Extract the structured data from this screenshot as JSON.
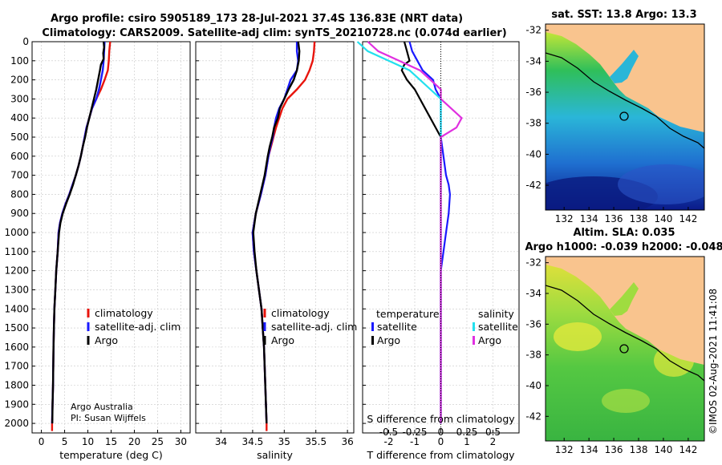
{
  "header": {
    "title_line1": "Argo profile: csiro 5905189_173 28-Jul-2021 37.4S 136.83E (NRT data)",
    "title_line2": "Climatology: CARS2009. Satellite-adj clim: synTS_20210728.nc (0.074d earlier)"
  },
  "credit": {
    "line1": "Argo Australia",
    "line2": "PI: Susan Wijffels"
  },
  "imos_stamp": "©IMOS 02-Aug-2021 11:41:08",
  "colors": {
    "climatology": "#e8140c",
    "satellite": "#1a1aff",
    "argo": "#000000",
    "sal_satellite": "#22e0ee",
    "sal_argo": "#e030e0",
    "land": "#f9c48e"
  },
  "chart_data": [
    {
      "type": "line",
      "title": "",
      "xlabel": "temperature (deg C)",
      "ylabel": "",
      "xlim": [
        -2,
        32
      ],
      "ylim": [
        2050,
        0
      ],
      "xticks": [
        0,
        5,
        10,
        15,
        20,
        25,
        30
      ],
      "yticks": [
        0,
        100,
        200,
        300,
        400,
        500,
        600,
        700,
        800,
        900,
        1000,
        1100,
        1200,
        1300,
        1400,
        1500,
        1600,
        1700,
        1800,
        1900,
        2000
      ],
      "legend": [
        "climatology",
        "satellite-adj. clim",
        "Argo"
      ],
      "series": [
        {
          "name": "climatology",
          "points": [
            [
              14.8,
              0
            ],
            [
              14.6,
              50
            ],
            [
              14.5,
              100
            ],
            [
              14.3,
              150
            ],
            [
              13.6,
              200
            ],
            [
              12.8,
              250
            ],
            [
              11.8,
              300
            ],
            [
              10.9,
              350
            ],
            [
              10.3,
              400
            ],
            [
              9.7,
              450
            ],
            [
              9.3,
              500
            ],
            [
              8.9,
              550
            ],
            [
              8.5,
              600
            ],
            [
              8.0,
              650
            ],
            [
              7.4,
              700
            ],
            [
              6.7,
              750
            ],
            [
              6.0,
              800
            ],
            [
              5.2,
              850
            ],
            [
              4.5,
              900
            ],
            [
              4.0,
              950
            ],
            [
              3.7,
              1000
            ],
            [
              3.5,
              1100
            ],
            [
              3.2,
              1200
            ],
            [
              3.0,
              1300
            ],
            [
              2.8,
              1400
            ],
            [
              2.7,
              1500
            ],
            [
              2.6,
              1600
            ],
            [
              2.55,
              1700
            ],
            [
              2.5,
              1800
            ],
            [
              2.4,
              1900
            ],
            [
              2.3,
              2000
            ],
            [
              2.3,
              2040
            ]
          ]
        },
        {
          "name": "satellite-adj. clim",
          "points": [
            [
              13.6,
              0
            ],
            [
              13.5,
              50
            ],
            [
              13.4,
              100
            ],
            [
              13.2,
              150
            ],
            [
              12.8,
              200
            ],
            [
              12.4,
              250
            ],
            [
              11.8,
              300
            ],
            [
              10.9,
              350
            ],
            [
              10.3,
              400
            ],
            [
              9.7,
              450
            ],
            [
              9.3,
              500
            ],
            [
              8.9,
              550
            ],
            [
              8.5,
              600
            ],
            [
              8.0,
              650
            ],
            [
              7.4,
              700
            ],
            [
              6.7,
              750
            ],
            [
              6.0,
              800
            ],
            [
              5.2,
              850
            ],
            [
              4.5,
              900
            ],
            [
              4.0,
              950
            ],
            [
              3.7,
              1000
            ],
            [
              3.5,
              1100
            ],
            [
              3.2,
              1200
            ],
            [
              3.0,
              1300
            ],
            [
              2.8,
              1400
            ],
            [
              2.7,
              1500
            ],
            [
              2.6,
              1600
            ],
            [
              2.55,
              1700
            ],
            [
              2.5,
              1800
            ],
            [
              2.4,
              1900
            ],
            [
              2.3,
              2000
            ]
          ]
        },
        {
          "name": "Argo",
          "points": [
            [
              13.4,
              0
            ],
            [
              13.5,
              30
            ],
            [
              13.3,
              60
            ],
            [
              13.4,
              90
            ],
            [
              12.8,
              120
            ],
            [
              12.6,
              150
            ],
            [
              12.2,
              200
            ],
            [
              11.8,
              250
            ],
            [
              11.3,
              300
            ],
            [
              10.8,
              350
            ],
            [
              10.3,
              400
            ],
            [
              9.8,
              450
            ],
            [
              9.4,
              500
            ],
            [
              8.9,
              550
            ],
            [
              8.5,
              600
            ],
            [
              8.0,
              650
            ],
            [
              7.4,
              700
            ],
            [
              6.8,
              750
            ],
            [
              6.1,
              800
            ],
            [
              5.3,
              850
            ],
            [
              4.6,
              900
            ],
            [
              4.1,
              950
            ],
            [
              3.8,
              1000
            ],
            [
              3.5,
              1100
            ],
            [
              3.2,
              1200
            ],
            [
              3.0,
              1300
            ],
            [
              2.8,
              1400
            ],
            [
              2.7,
              1500
            ],
            [
              2.6,
              1600
            ],
            [
              2.55,
              1700
            ],
            [
              2.5,
              1800
            ],
            [
              2.4,
              1900
            ],
            [
              2.35,
              2000
            ]
          ]
        }
      ]
    },
    {
      "type": "line",
      "xlabel": "salinity",
      "xlim": [
        33.6,
        36.1
      ],
      "ylim": [
        2050,
        0
      ],
      "xticks": [
        34,
        34.5,
        35,
        35.5,
        36
      ],
      "legend": [
        "climatology",
        "satellite-adj. clim",
        "Argo"
      ],
      "series": [
        {
          "name": "climatology",
          "points": [
            [
              35.48,
              0
            ],
            [
              35.47,
              50
            ],
            [
              35.45,
              100
            ],
            [
              35.4,
              150
            ],
            [
              35.33,
              200
            ],
            [
              35.2,
              250
            ],
            [
              35.05,
              300
            ],
            [
              34.97,
              350
            ],
            [
              34.92,
              400
            ],
            [
              34.87,
              450
            ],
            [
              34.83,
              500
            ],
            [
              34.79,
              550
            ],
            [
              34.75,
              600
            ],
            [
              34.7,
              700
            ],
            [
              34.63,
              800
            ],
            [
              34.55,
              900
            ],
            [
              34.5,
              1000
            ],
            [
              34.52,
              1100
            ],
            [
              34.56,
              1200
            ],
            [
              34.6,
              1300
            ],
            [
              34.64,
              1400
            ],
            [
              34.66,
              1500
            ],
            [
              34.68,
              1600
            ],
            [
              34.69,
              1700
            ],
            [
              34.7,
              1800
            ],
            [
              34.71,
              1900
            ],
            [
              34.72,
              2000
            ],
            [
              34.72,
              2040
            ]
          ]
        },
        {
          "name": "satellite-adj. clim",
          "points": [
            [
              35.2,
              0
            ],
            [
              35.2,
              50
            ],
            [
              35.22,
              100
            ],
            [
              35.2,
              150
            ],
            [
              35.1,
              200
            ],
            [
              35.05,
              250
            ],
            [
              35.0,
              300
            ],
            [
              34.92,
              350
            ],
            [
              34.87,
              400
            ],
            [
              34.84,
              450
            ],
            [
              34.82,
              500
            ],
            [
              34.78,
              550
            ],
            [
              34.75,
              600
            ],
            [
              34.7,
              700
            ],
            [
              34.63,
              800
            ],
            [
              34.55,
              900
            ],
            [
              34.5,
              1000
            ],
            [
              34.52,
              1100
            ],
            [
              34.56,
              1200
            ],
            [
              34.6,
              1300
            ],
            [
              34.64,
              1400
            ],
            [
              34.66,
              1500
            ],
            [
              34.68,
              1600
            ],
            [
              34.69,
              1700
            ],
            [
              34.7,
              1800
            ],
            [
              34.71,
              1900
            ],
            [
              34.72,
              2000
            ]
          ]
        },
        {
          "name": "Argo",
          "points": [
            [
              35.22,
              0
            ],
            [
              35.24,
              50
            ],
            [
              35.23,
              100
            ],
            [
              35.2,
              150
            ],
            [
              35.15,
              200
            ],
            [
              35.07,
              250
            ],
            [
              35.0,
              300
            ],
            [
              34.93,
              350
            ],
            [
              34.9,
              400
            ],
            [
              34.84,
              450
            ],
            [
              34.81,
              500
            ],
            [
              34.77,
              550
            ],
            [
              34.74,
              600
            ],
            [
              34.69,
              700
            ],
            [
              34.62,
              800
            ],
            [
              34.55,
              900
            ],
            [
              34.51,
              1000
            ],
            [
              34.53,
              1100
            ],
            [
              34.56,
              1200
            ],
            [
              34.6,
              1300
            ],
            [
              34.64,
              1400
            ],
            [
              34.66,
              1500
            ],
            [
              34.68,
              1600
            ],
            [
              34.69,
              1700
            ],
            [
              34.7,
              1800
            ],
            [
              34.71,
              1900
            ],
            [
              34.72,
              2000
            ]
          ]
        }
      ]
    },
    {
      "type": "line",
      "xlabel": "T difference from climatology",
      "xlim": [
        -3,
        3
      ],
      "ylim": [
        2050,
        0
      ],
      "xticks": [
        -2,
        -1,
        0,
        1,
        2
      ],
      "top_label": "S difference from climatology",
      "top_ticks": [
        -0.5,
        -0.25,
        0,
        0.25,
        0.5
      ],
      "legend_left_title": "temperature",
      "legend_right_title": "salinity",
      "legend_left": [
        "satellite",
        "Argo"
      ],
      "legend_right": [
        "satellite",
        "Argo"
      ],
      "series": [
        {
          "name": "temperature satellite",
          "points": [
            [
              -1.2,
              0
            ],
            [
              -1.1,
              50
            ],
            [
              -0.9,
              100
            ],
            [
              -0.7,
              150
            ],
            [
              -0.3,
              200
            ],
            [
              -0.2,
              250
            ],
            [
              0,
              300
            ],
            [
              0,
              400
            ],
            [
              0,
              500
            ],
            [
              0.1,
              600
            ],
            [
              0.2,
              700
            ],
            [
              0.3,
              750
            ],
            [
              0.35,
              800
            ],
            [
              0.3,
              900
            ],
            [
              0.2,
              1000
            ],
            [
              0.1,
              1100
            ],
            [
              0,
              1200
            ],
            [
              0,
              1500
            ],
            [
              0,
              2000
            ]
          ]
        },
        {
          "name": "temperature Argo",
          "points": [
            [
              -1.4,
              0
            ],
            [
              -1.3,
              50
            ],
            [
              -1.2,
              100
            ],
            [
              -1.4,
              120
            ],
            [
              -1.5,
              150
            ],
            [
              -1.3,
              200
            ],
            [
              -1.0,
              250
            ],
            [
              -0.8,
              300
            ],
            [
              -0.6,
              350
            ],
            [
              -0.4,
              400
            ],
            [
              -0.2,
              450
            ],
            [
              0,
              500
            ],
            [
              0,
              600
            ],
            [
              0,
              2000
            ]
          ]
        },
        {
          "name": "salinity satellite",
          "points": [
            [
              -0.8,
              0
            ],
            [
              -0.7,
              50
            ],
            [
              -0.5,
              100
            ],
            [
              -0.3,
              150
            ],
            [
              -0.2,
              200
            ],
            [
              -0.1,
              250
            ],
            [
              0,
              300
            ],
            [
              0,
              2000
            ]
          ]
        },
        {
          "name": "salinity Argo",
          "points": [
            [
              -0.7,
              0
            ],
            [
              -0.6,
              50
            ],
            [
              -0.4,
              100
            ],
            [
              -0.2,
              150
            ],
            [
              -0.1,
              200
            ],
            [
              0,
              250
            ],
            [
              0,
              300
            ],
            [
              0.1,
              350
            ],
            [
              0.2,
              400
            ],
            [
              0.15,
              450
            ],
            [
              0.0,
              500
            ],
            [
              0,
              1000
            ],
            [
              0,
              2000
            ]
          ]
        }
      ]
    },
    {
      "type": "heatmap",
      "title": "sat. SST: 13.8 Argo: 13.3",
      "xlim": [
        130.5,
        143.3
      ],
      "ylim": [
        -43.6,
        -31.6
      ],
      "xticks": [
        132,
        134,
        136,
        138,
        140,
        142
      ],
      "yticks": [
        -32,
        -34,
        -36,
        -38,
        -40,
        -42
      ],
      "marker": {
        "lon": 136.83,
        "lat": -37.4
      }
    },
    {
      "type": "heatmap",
      "title_line1": "Altim. SLA: 0.035",
      "title_line2": "Argo h1000: -0.039 h2000: -0.048",
      "xlim": [
        130.5,
        143.3
      ],
      "ylim": [
        -43.6,
        -31.6
      ],
      "xticks": [
        132,
        134,
        136,
        138,
        140,
        142
      ],
      "yticks": [
        -32,
        -34,
        -36,
        -38,
        -40,
        -42
      ],
      "marker": {
        "lon": 136.83,
        "lat": -37.4
      }
    }
  ]
}
